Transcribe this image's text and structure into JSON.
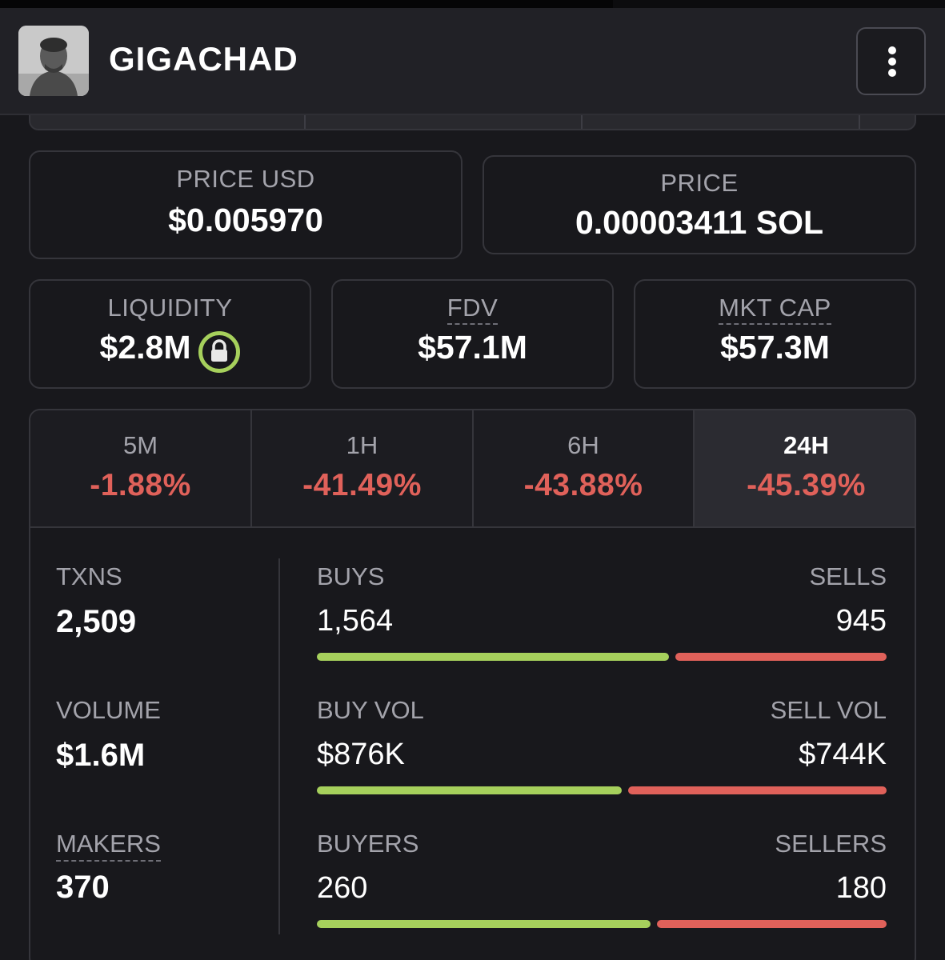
{
  "header": {
    "title": "GIGACHAD"
  },
  "prices": {
    "usd": {
      "label": "PRICE USD",
      "value": "$0.005970"
    },
    "native": {
      "label": "PRICE",
      "value": "0.00003411 SOL"
    }
  },
  "metrics": {
    "liquidity": {
      "label": "LIQUIDITY",
      "value": "$2.8M"
    },
    "fdv": {
      "label": "FDV",
      "value": "$57.1M"
    },
    "mktcap": {
      "label": "MKT CAP",
      "value": "$57.3M"
    }
  },
  "timeframes": [
    {
      "label": "5M",
      "change": "-1.88%"
    },
    {
      "label": "1H",
      "change": "-41.49%"
    },
    {
      "label": "6H",
      "change": "-43.88%"
    },
    {
      "label": "24H",
      "change": "-45.39%"
    }
  ],
  "selected_timeframe": "24H",
  "stats": {
    "txns": {
      "label": "TXNS",
      "value": "2,509"
    },
    "volume": {
      "label": "VOLUME",
      "value": "$1.6M"
    },
    "makers": {
      "label": "MAKERS",
      "value": "370"
    }
  },
  "breakdown": {
    "txns": {
      "left_label": "BUYS",
      "left_value": "1,564",
      "right_label": "SELLS",
      "right_value": "945",
      "left_fraction": 0.623
    },
    "volume": {
      "left_label": "BUY VOL",
      "left_value": "$876K",
      "right_label": "SELL VOL",
      "right_value": "$744K",
      "left_fraction": 0.541
    },
    "makers": {
      "left_label": "BUYERS",
      "left_value": "260",
      "right_label": "SELLERS",
      "right_value": "180",
      "left_fraction": 0.591
    }
  },
  "colors": {
    "buy": "#a6d05c",
    "sell": "#e0615a",
    "lock_ring": "#a6d05c"
  },
  "icons": {
    "menu": "more-vertical-icon",
    "lock": "lock-icon",
    "avatar": "token-avatar"
  }
}
